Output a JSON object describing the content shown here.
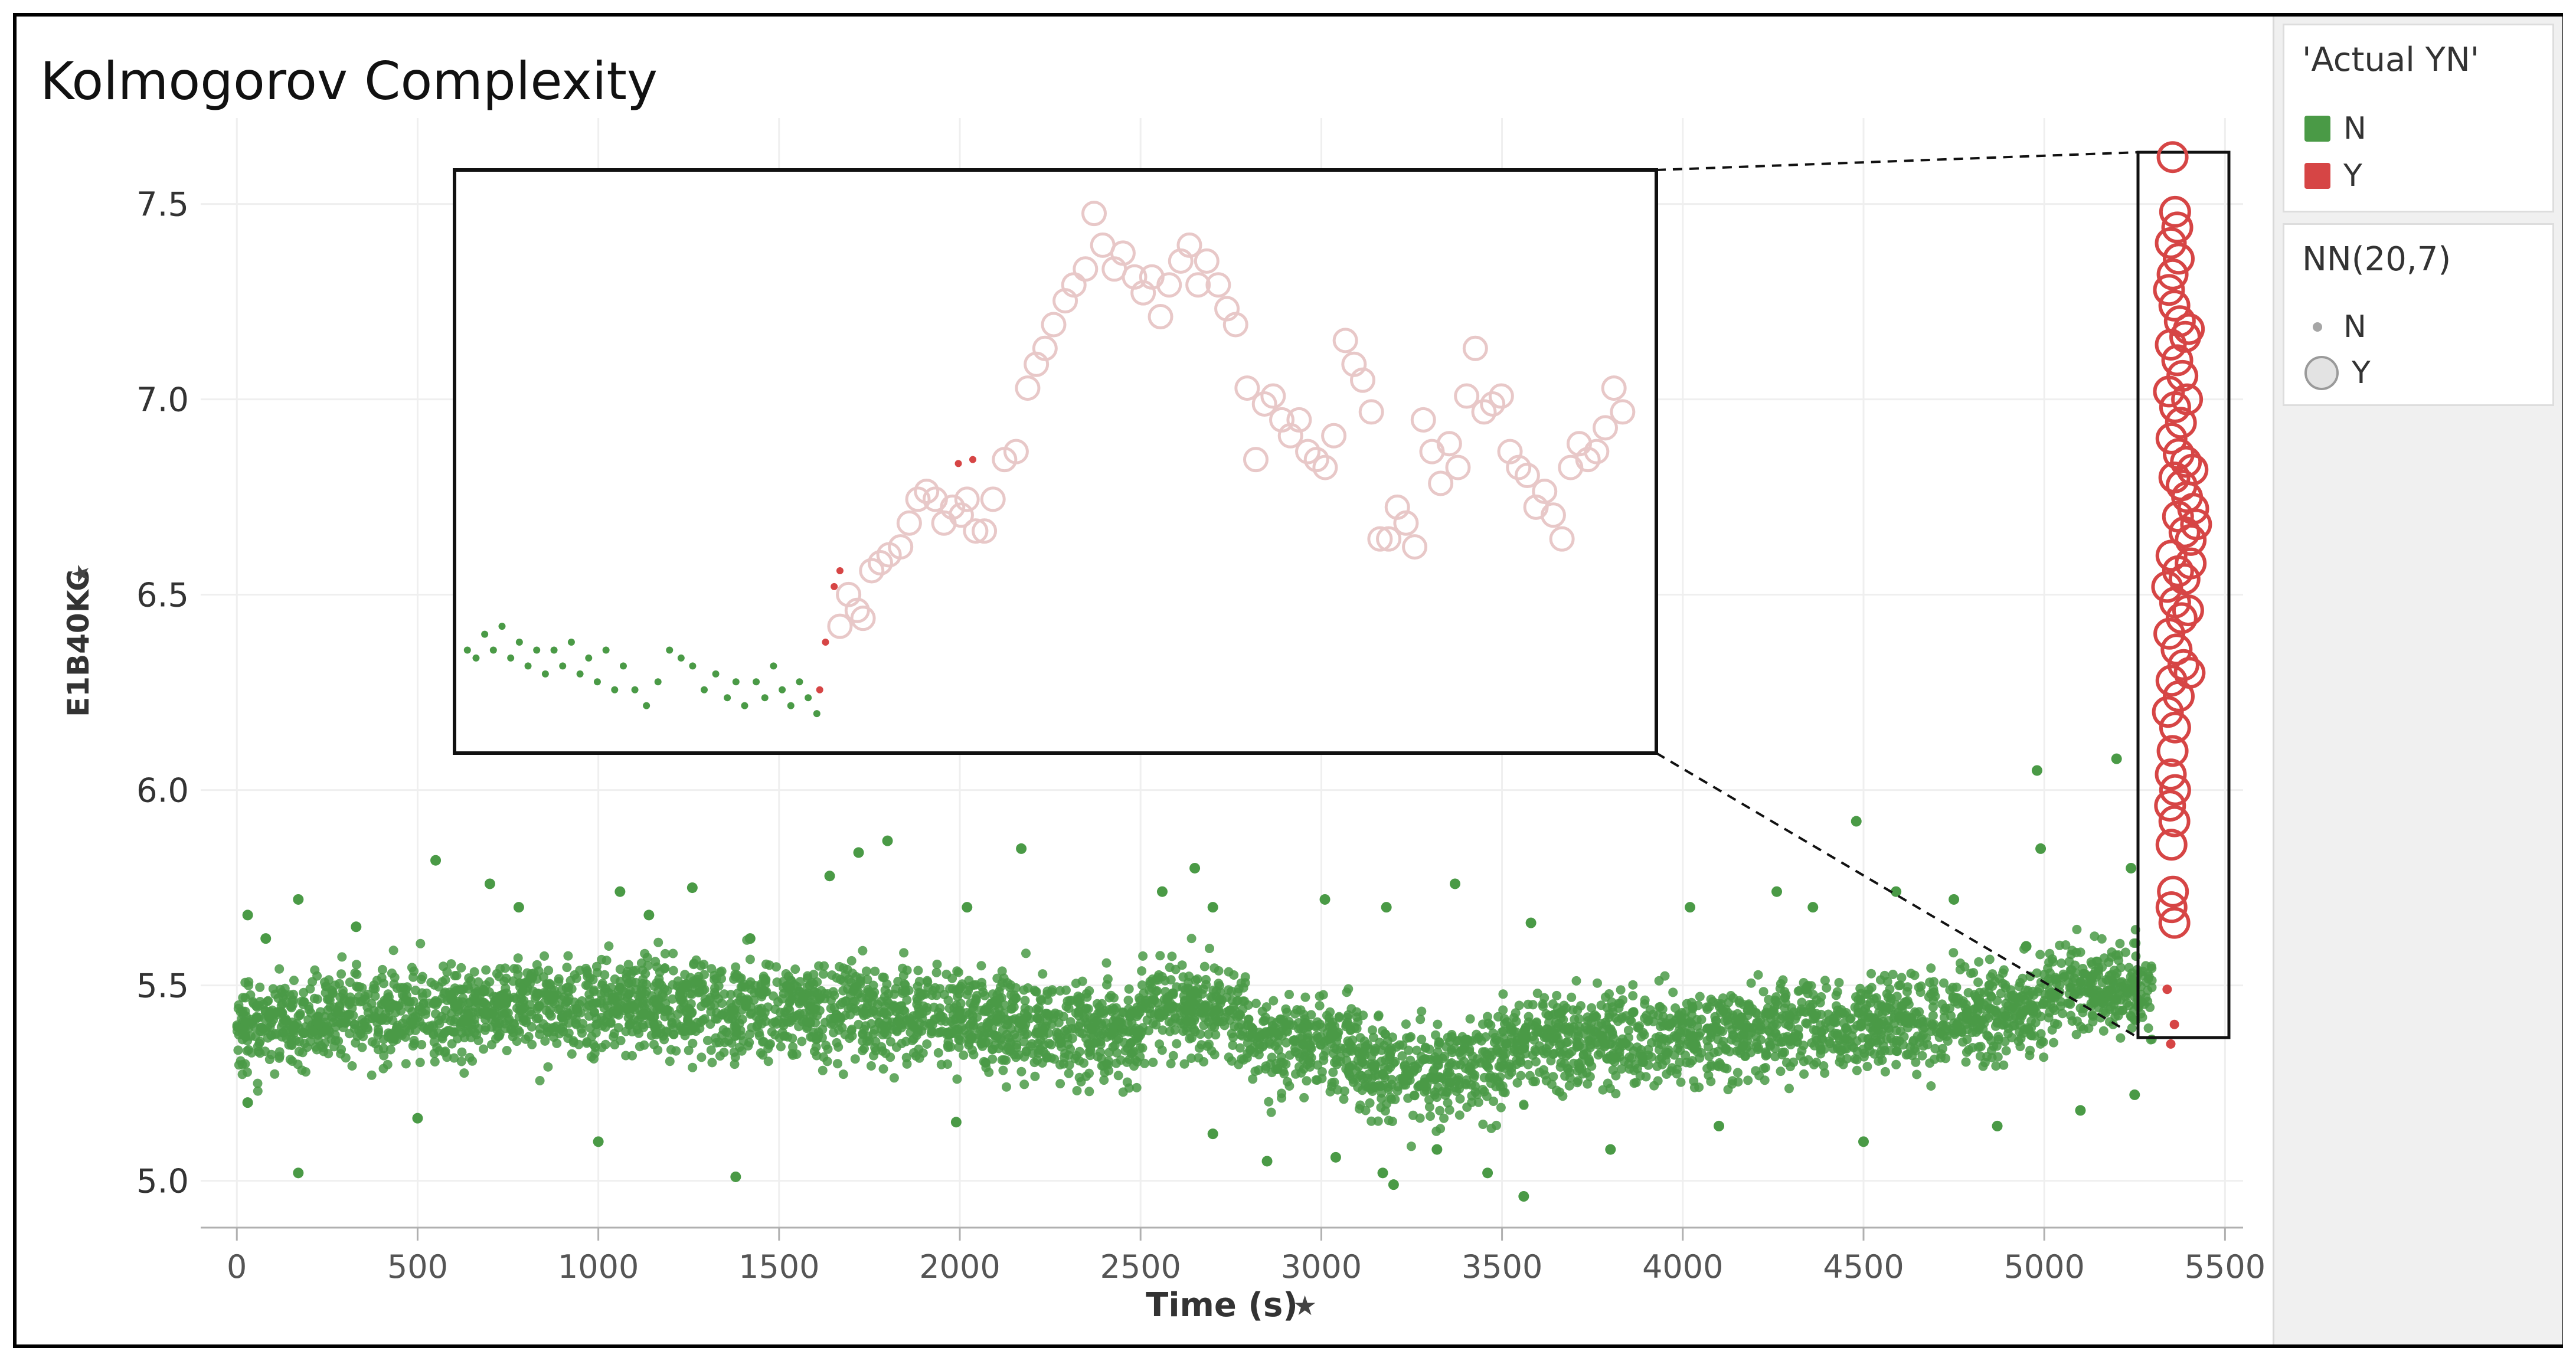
{
  "chart_data": {
    "type": "scatter",
    "title": "Kolmogorov Complexity",
    "xlabel": "Time (s)",
    "ylabel": "E1B40KC",
    "xlim": [
      -100,
      5550
    ],
    "ylim": [
      4.88,
      7.72
    ],
    "xticks": [
      "0",
      "500",
      "1000",
      "1500",
      "2000",
      "2500",
      "3000",
      "3500",
      "4000",
      "4500",
      "5000",
      "5500"
    ],
    "yticks": [
      "5.0",
      "5.5",
      "6.0",
      "6.5",
      "7.0",
      "7.5"
    ],
    "grid": true,
    "colors": {
      "N": "#4a9a46",
      "Y": "#d64545",
      "inset_Y": "#e8c8c8"
    },
    "series": [
      {
        "name": "N",
        "note": "dense band (~5000 points) 0–5300 s, mean ≈5.40, range ≈4.95–6.10",
        "outliers": [
          [
            30,
            5.68
          ],
          [
            80,
            5.62
          ],
          [
            170,
            5.72
          ],
          [
            330,
            5.65
          ],
          [
            550,
            5.82
          ],
          [
            700,
            5.76
          ],
          [
            780,
            5.7
          ],
          [
            1060,
            5.74
          ],
          [
            1140,
            5.68
          ],
          [
            1260,
            5.75
          ],
          [
            1420,
            5.62
          ],
          [
            1640,
            5.78
          ],
          [
            1720,
            5.84
          ],
          [
            1800,
            5.87
          ],
          [
            2020,
            5.7
          ],
          [
            2170,
            5.85
          ],
          [
            2560,
            5.74
          ],
          [
            2650,
            5.8
          ],
          [
            2700,
            5.7
          ],
          [
            3010,
            5.72
          ],
          [
            3180,
            5.7
          ],
          [
            3370,
            5.76
          ],
          [
            3580,
            5.66
          ],
          [
            4020,
            5.7
          ],
          [
            4260,
            5.74
          ],
          [
            4360,
            5.7
          ],
          [
            4480,
            5.92
          ],
          [
            4590,
            5.74
          ],
          [
            4750,
            5.72
          ],
          [
            4950,
            5.6
          ],
          [
            4980,
            6.05
          ],
          [
            4990,
            5.85
          ],
          [
            5200,
            6.08
          ],
          [
            5240,
            5.8
          ],
          [
            30,
            5.2
          ],
          [
            170,
            5.02
          ],
          [
            500,
            5.16
          ],
          [
            1000,
            5.1
          ],
          [
            1380,
            5.01
          ],
          [
            1990,
            5.15
          ],
          [
            2700,
            5.12
          ],
          [
            2850,
            5.05
          ],
          [
            3040,
            5.06
          ],
          [
            3170,
            5.02
          ],
          [
            3200,
            4.99
          ],
          [
            3320,
            5.08
          ],
          [
            3460,
            5.02
          ],
          [
            3560,
            4.96
          ],
          [
            3800,
            5.08
          ],
          [
            4100,
            5.14
          ],
          [
            4500,
            5.1
          ],
          [
            4870,
            5.14
          ],
          [
            5100,
            5.18
          ],
          [
            5250,
            5.22
          ]
        ]
      },
      {
        "name": "Y",
        "values": [
          [
            5355,
            7.62
          ],
          [
            5362,
            7.48
          ],
          [
            5350,
            7.4
          ],
          [
            5368,
            7.44
          ],
          [
            5372,
            7.36
          ],
          [
            5355,
            7.32
          ],
          [
            5345,
            7.28
          ],
          [
            5360,
            7.24
          ],
          [
            5375,
            7.2
          ],
          [
            5390,
            7.16
          ],
          [
            5350,
            7.14
          ],
          [
            5368,
            7.1
          ],
          [
            5382,
            7.06
          ],
          [
            5400,
            7.18
          ],
          [
            5345,
            7.02
          ],
          [
            5362,
            6.98
          ],
          [
            5395,
            7.0
          ],
          [
            5378,
            6.94
          ],
          [
            5352,
            6.9
          ],
          [
            5372,
            6.86
          ],
          [
            5392,
            6.84
          ],
          [
            5410,
            6.82
          ],
          [
            5360,
            6.8
          ],
          [
            5380,
            6.78
          ],
          [
            5395,
            6.75
          ],
          [
            5412,
            6.72
          ],
          [
            5370,
            6.7
          ],
          [
            5388,
            6.66
          ],
          [
            5405,
            6.64
          ],
          [
            5420,
            6.68
          ],
          [
            5352,
            6.6
          ],
          [
            5370,
            6.56
          ],
          [
            5388,
            6.54
          ],
          [
            5405,
            6.58
          ],
          [
            5340,
            6.52
          ],
          [
            5362,
            6.48
          ],
          [
            5380,
            6.44
          ],
          [
            5398,
            6.46
          ],
          [
            5346,
            6.4
          ],
          [
            5366,
            6.36
          ],
          [
            5385,
            6.32
          ],
          [
            5402,
            6.3
          ],
          [
            5352,
            6.28
          ],
          [
            5372,
            6.24
          ],
          [
            5342,
            6.2
          ],
          [
            5362,
            6.16
          ],
          [
            5355,
            6.1
          ],
          [
            5350,
            6.04
          ],
          [
            5362,
            6.0
          ],
          [
            5348,
            5.96
          ],
          [
            5360,
            5.92
          ],
          [
            5352,
            5.86
          ],
          [
            5356,
            5.74
          ],
          [
            5352,
            5.7
          ],
          [
            5360,
            5.66
          ]
        ]
      }
    ],
    "inset": {
      "note": "magnified view of t≈5300–5420 s",
      "N": [
        [
          0.02,
          0.2
        ],
        [
          0.05,
          0.18
        ],
        [
          0.08,
          0.24
        ],
        [
          0.11,
          0.2
        ],
        [
          0.14,
          0.26
        ],
        [
          0.17,
          0.18
        ],
        [
          0.2,
          0.22
        ],
        [
          0.23,
          0.16
        ],
        [
          0.26,
          0.2
        ],
        [
          0.29,
          0.14
        ],
        [
          0.32,
          0.2
        ],
        [
          0.35,
          0.16
        ],
        [
          0.38,
          0.22
        ],
        [
          0.41,
          0.14
        ],
        [
          0.44,
          0.18
        ],
        [
          0.47,
          0.12
        ],
        [
          0.5,
          0.2
        ],
        [
          0.53,
          0.1
        ],
        [
          0.56,
          0.16
        ],
        [
          0.6,
          0.1
        ],
        [
          0.64,
          0.06
        ],
        [
          0.68,
          0.12
        ],
        [
          0.72,
          0.2
        ],
        [
          0.76,
          0.18
        ],
        [
          0.8,
          0.16
        ],
        [
          0.84,
          0.1
        ],
        [
          0.88,
          0.14
        ],
        [
          0.92,
          0.08
        ],
        [
          0.95,
          0.12
        ],
        [
          0.98,
          0.06
        ],
        [
          1.02,
          0.12
        ],
        [
          1.05,
          0.08
        ],
        [
          1.08,
          0.16
        ],
        [
          1.11,
          0.1
        ],
        [
          1.14,
          0.06
        ],
        [
          1.17,
          0.12
        ],
        [
          1.2,
          0.08
        ],
        [
          1.23,
          0.04
        ]
      ],
      "Y_small": [
        [
          1.24,
          0.1
        ],
        [
          1.26,
          0.22
        ],
        [
          1.29,
          0.36
        ],
        [
          1.31,
          0.4
        ],
        [
          1.72,
          0.67
        ],
        [
          1.77,
          0.68
        ]
      ],
      "Y": [
        [
          1.31,
          0.26
        ],
        [
          1.34,
          0.34
        ],
        [
          1.37,
          0.3
        ],
        [
          1.39,
          0.28
        ],
        [
          1.42,
          0.4
        ],
        [
          1.45,
          0.42
        ],
        [
          1.48,
          0.44
        ],
        [
          1.52,
          0.46
        ],
        [
          1.55,
          0.52
        ],
        [
          1.58,
          0.58
        ],
        [
          1.61,
          0.6
        ],
        [
          1.64,
          0.58
        ],
        [
          1.67,
          0.52
        ],
        [
          1.7,
          0.56
        ],
        [
          1.73,
          0.54
        ],
        [
          1.75,
          0.58
        ],
        [
          1.78,
          0.5
        ],
        [
          1.81,
          0.5
        ],
        [
          1.84,
          0.58
        ],
        [
          1.88,
          0.68
        ],
        [
          1.92,
          0.7
        ],
        [
          1.96,
          0.86
        ],
        [
          1.99,
          0.92
        ],
        [
          2.02,
          0.96
        ],
        [
          2.05,
          1.02
        ],
        [
          2.09,
          1.08
        ],
        [
          2.12,
          1.12
        ],
        [
          2.16,
          1.16
        ],
        [
          2.19,
          1.3
        ],
        [
          2.22,
          1.22
        ],
        [
          2.26,
          1.16
        ],
        [
          2.29,
          1.2
        ],
        [
          2.33,
          1.14
        ],
        [
          2.36,
          1.1
        ],
        [
          2.39,
          1.14
        ],
        [
          2.42,
          1.04
        ],
        [
          2.45,
          1.12
        ],
        [
          2.49,
          1.18
        ],
        [
          2.52,
          1.22
        ],
        [
          2.55,
          1.12
        ],
        [
          2.58,
          1.18
        ],
        [
          2.62,
          1.12
        ],
        [
          2.65,
          1.06
        ],
        [
          2.68,
          1.02
        ],
        [
          2.72,
          0.86
        ],
        [
          2.75,
          0.68
        ],
        [
          2.78,
          0.82
        ],
        [
          2.81,
          0.84
        ],
        [
          2.84,
          0.78
        ],
        [
          2.87,
          0.74
        ],
        [
          2.9,
          0.78
        ],
        [
          2.93,
          0.7
        ],
        [
          2.96,
          0.68
        ],
        [
          2.99,
          0.66
        ],
        [
          3.02,
          0.74
        ],
        [
          3.06,
          0.98
        ],
        [
          3.09,
          0.92
        ],
        [
          3.12,
          0.88
        ],
        [
          3.15,
          0.8
        ],
        [
          3.18,
          0.48
        ],
        [
          3.21,
          0.48
        ],
        [
          3.24,
          0.56
        ],
        [
          3.27,
          0.52
        ],
        [
          3.3,
          0.46
        ],
        [
          3.33,
          0.78
        ],
        [
          3.36,
          0.7
        ],
        [
          3.39,
          0.62
        ],
        [
          3.42,
          0.72
        ],
        [
          3.45,
          0.66
        ],
        [
          3.48,
          0.84
        ],
        [
          3.51,
          0.96
        ],
        [
          3.54,
          0.8
        ],
        [
          3.57,
          0.82
        ],
        [
          3.6,
          0.84
        ],
        [
          3.63,
          0.7
        ],
        [
          3.66,
          0.66
        ],
        [
          3.69,
          0.64
        ],
        [
          3.72,
          0.56
        ],
        [
          3.75,
          0.6
        ],
        [
          3.78,
          0.54
        ],
        [
          3.81,
          0.48
        ],
        [
          3.84,
          0.66
        ],
        [
          3.87,
          0.72
        ],
        [
          3.9,
          0.68
        ],
        [
          3.93,
          0.7
        ],
        [
          3.96,
          0.76
        ],
        [
          3.99,
          0.86
        ],
        [
          4.02,
          0.8
        ]
      ]
    }
  },
  "legend_color": {
    "title": "'Actual YN'",
    "items": [
      "N",
      "Y"
    ]
  },
  "legend_size": {
    "title": "NN(20,7)",
    "items": [
      "N",
      "Y"
    ]
  },
  "icons": {
    "axis_pin": "pushpin-icon"
  }
}
